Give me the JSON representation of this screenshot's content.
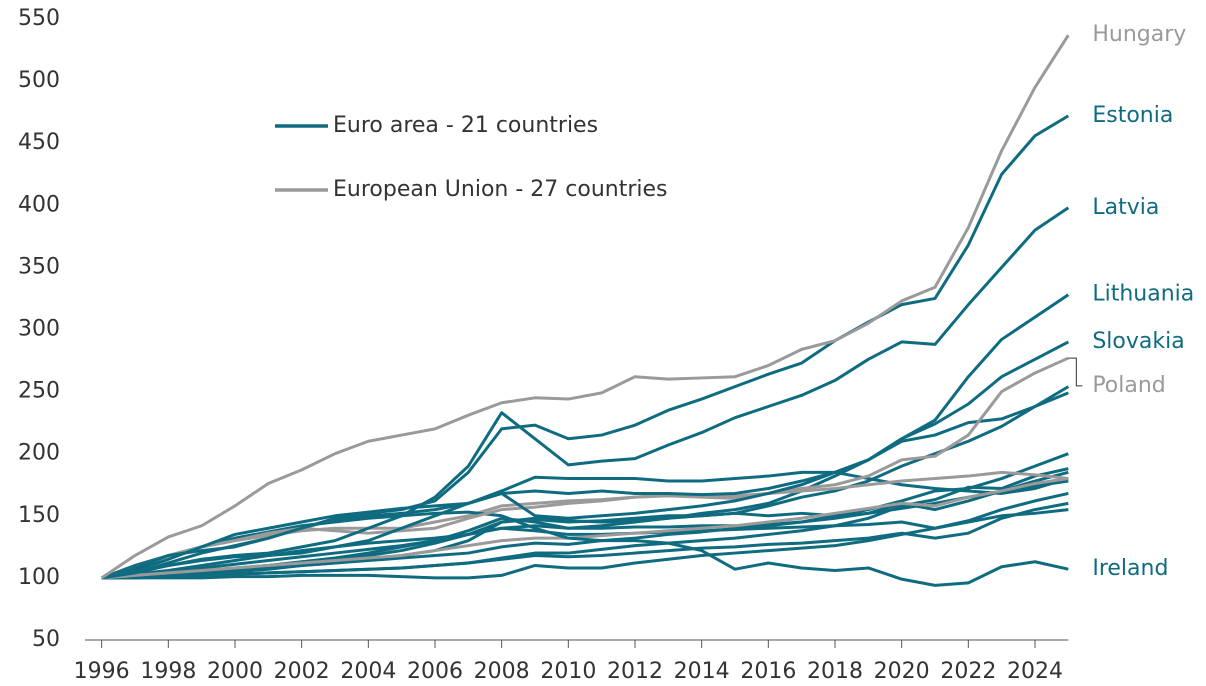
{
  "chart_data": {
    "type": "line",
    "legend": [
      {
        "label": "Euro area - 21 countries",
        "color": "#0f6c80"
      },
      {
        "label": "European Union - 27 countries",
        "color": "#9a9a9a"
      }
    ],
    "x": [
      1996,
      1997,
      1998,
      1999,
      2000,
      2001,
      2002,
      2003,
      2004,
      2005,
      2006,
      2007,
      2008,
      2009,
      2010,
      2011,
      2012,
      2013,
      2014,
      2015,
      2016,
      2017,
      2018,
      2019,
      2020,
      2021,
      2022,
      2023,
      2024,
      2025
    ],
    "xlim": [
      1995.5,
      2025.5
    ],
    "xticks": [
      1996,
      1998,
      2000,
      2002,
      2004,
      2006,
      2008,
      2010,
      2012,
      2014,
      2016,
      2018,
      2020,
      2022,
      2024
    ],
    "ylim": [
      50,
      550
    ],
    "yticks": [
      50,
      100,
      150,
      200,
      250,
      300,
      350,
      400,
      450,
      500,
      550
    ],
    "series": [
      {
        "color": "#0f6c80",
        "values": [
          100,
          102,
          104,
          106,
          108,
          110,
          112,
          115,
          118,
          122,
          128,
          135,
          145,
          147,
          145,
          146,
          148,
          150,
          150,
          152,
          158,
          165,
          170,
          178,
          190,
          200,
          210,
          222,
          238,
          254
        ]
      },
      {
        "color": "#0f6c80",
        "values": [
          100,
          101,
          103,
          105,
          107,
          110,
          113,
          116,
          120,
          125,
          130,
          138,
          148,
          145,
          140,
          142,
          145,
          148,
          152,
          155,
          160,
          170,
          182,
          195,
          210,
          215,
          225,
          228,
          238,
          249
        ]
      },
      {
        "color": "#0f6c80",
        "values": [
          100,
          101,
          102,
          104,
          106,
          108,
          110,
          112,
          114,
          116,
          118,
          120,
          125,
          128,
          127,
          130,
          132,
          135,
          137,
          140,
          142,
          145,
          150,
          155,
          162,
          170,
          172,
          180,
          190,
          200
        ]
      },
      {
        "color": "#0f6c80",
        "values": [
          100,
          100,
          101,
          102,
          103,
          104,
          105,
          106,
          107,
          108,
          110,
          112,
          116,
          120,
          120,
          123,
          126,
          128,
          130,
          132,
          135,
          138,
          142,
          148,
          158,
          163,
          173,
          172,
          182,
          188
        ]
      },
      {
        "color": "#0f6c80",
        "values": [
          100,
          103,
          106,
          110,
          114,
          118,
          122,
          125,
          128,
          130,
          132,
          135,
          140,
          142,
          140,
          140,
          141,
          141,
          142,
          142,
          143,
          145,
          148,
          152,
          160,
          155,
          162,
          170,
          178,
          185
        ]
      },
      {
        "color": "#0f6c80",
        "values": [
          100,
          100,
          100,
          100,
          101,
          101,
          102,
          102,
          102,
          101,
          100,
          100,
          102,
          110,
          108,
          108,
          112,
          115,
          118,
          120,
          122,
          124,
          126,
          130,
          135,
          140,
          146,
          155,
          162,
          168
        ]
      },
      {
        "color": "#0f6c80",
        "values": [
          100,
          100,
          101,
          102,
          103,
          104,
          105,
          106,
          107,
          108,
          110,
          112,
          115,
          118,
          117,
          118,
          120,
          122,
          124,
          125,
          127,
          128,
          130,
          132,
          136,
          132,
          136,
          148,
          155,
          160
        ]
      },
      {
        "color": "#0f6c80",
        "values": [
          100,
          102,
          105,
          108,
          111,
          114,
          117,
          120,
          123,
          126,
          130,
          135,
          140,
          138,
          135,
          135,
          136,
          137,
          138,
          139,
          140,
          141,
          142,
          143,
          145,
          140,
          145,
          150,
          152,
          155
        ]
      },
      {
        "color": "#0f6c80",
        "values": [
          100,
          101,
          102,
          103,
          105,
          107,
          110,
          112,
          115,
          118,
          122,
          130,
          145,
          148,
          146,
          145,
          146,
          148,
          150,
          152,
          150,
          152,
          150,
          152,
          156,
          160,
          165,
          170,
          174,
          178
        ]
      },
      {
        "color": "#0f6c80",
        "values": [
          100,
          104,
          112,
          120,
          126,
          132,
          140,
          147,
          150,
          152,
          155,
          160,
          170,
          181,
          180,
          180,
          180,
          178,
          178,
          180,
          182,
          185,
          185,
          180,
          175,
          172,
          170,
          168,
          172,
          180
        ]
      },
      {
        "color": "#9a9a9a",
        "values": [
          100,
          102,
          104,
          106,
          108,
          110,
          112,
          114,
          116,
          118,
          122,
          126,
          130,
          132,
          132,
          134,
          136,
          138,
          140,
          142,
          145,
          148,
          152,
          156,
          160,
          158,
          165,
          170,
          176,
          180
        ]
      },
      {
        "color": "#9a9a9a",
        "values": [
          100,
          106,
          115,
          125,
          130,
          134,
          138,
          140,
          140,
          140,
          145,
          150,
          158,
          160,
          162,
          163,
          165,
          167,
          167,
          166,
          168,
          170,
          172,
          175,
          178,
          180,
          182,
          185,
          183,
          180
        ]
      },
      {
        "name": "Ireland",
        "color": "#0f6c80",
        "values": [
          100,
          110,
          118,
          125,
          132,
          137,
          142,
          145,
          148,
          150,
          152,
          153,
          150,
          140,
          132,
          130,
          130,
          128,
          122,
          107,
          112,
          108,
          106,
          108,
          99,
          94,
          96,
          109,
          113,
          107
        ]
      },
      {
        "name": "Poland",
        "color": "#9a9a9a",
        "values": [
          100,
          108,
          118,
          125,
          130,
          136,
          140,
          138,
          136,
          138,
          140,
          148,
          155,
          157,
          160,
          162,
          165,
          166,
          165,
          164,
          168,
          172,
          175,
          182,
          195,
          198,
          215,
          250,
          265,
          277
        ]
      },
      {
        "name": "Slovakia",
        "color": "#0f6c80",
        "values": [
          100,
          106,
          115,
          125,
          135,
          140,
          145,
          150,
          153,
          156,
          158,
          160,
          168,
          170,
          168,
          170,
          168,
          168,
          167,
          168,
          172,
          178,
          185,
          195,
          212,
          224,
          240,
          262,
          276,
          290
        ]
      },
      {
        "name": "Lithuania",
        "color": "#0f6c80",
        "values": [
          100,
          104,
          110,
          114,
          117,
          118,
          120,
          125,
          130,
          140,
          150,
          160,
          168,
          150,
          148,
          150,
          152,
          155,
          158,
          162,
          168,
          175,
          185,
          195,
          212,
          227,
          262,
          292,
          310,
          328
        ]
      },
      {
        "name": "Latvia",
        "color": "#0f6c80",
        "values": [
          100,
          105,
          110,
          115,
          118,
          120,
          125,
          130,
          140,
          150,
          165,
          190,
          233,
          212,
          191,
          194,
          196,
          207,
          217,
          229,
          238,
          247,
          259,
          276,
          290,
          288,
          320,
          350,
          380,
          398
        ]
      },
      {
        "name": "Estonia",
        "color": "#0f6c80",
        "values": [
          100,
          108,
          118,
          122,
          125,
          132,
          140,
          148,
          152,
          155,
          162,
          185,
          220,
          223,
          212,
          215,
          223,
          235,
          244,
          254,
          264,
          273,
          291,
          306,
          320,
          325,
          368,
          425,
          456,
          472
        ]
      },
      {
        "name": "Hungary",
        "color": "#9a9a9a",
        "values": [
          100,
          118,
          133,
          142,
          158,
          176,
          187,
          200,
          210,
          215,
          220,
          231,
          241,
          245,
          244,
          249,
          262,
          260,
          261,
          262,
          271,
          284,
          291,
          305,
          323,
          334,
          382,
          444,
          495,
          537
        ]
      }
    ]
  }
}
